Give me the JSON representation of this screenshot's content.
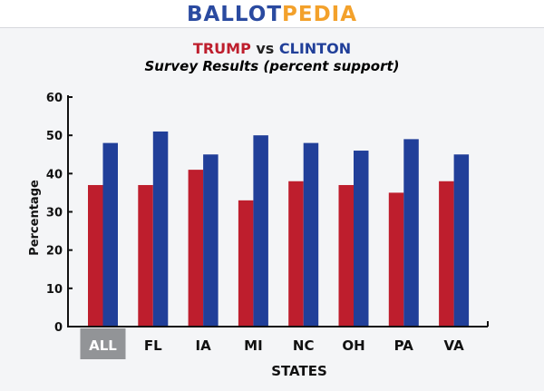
{
  "logo": {
    "part1": "BALLOT",
    "part2": "PEDIA",
    "color1": "#2a4aa0",
    "color2": "#f3a12b"
  },
  "title": {
    "trump": "TRUMP",
    "vs": " vs ",
    "clinton": "CLINTON"
  },
  "chart_data": {
    "type": "bar",
    "title": "TRUMP vs CLINTON",
    "subtitle": "Survey Results (percent support)",
    "xlabel": "STATES",
    "ylabel": "Percentage",
    "ylim": [
      0,
      60
    ],
    "yticks": [
      0,
      10,
      20,
      30,
      40,
      50,
      60
    ],
    "categories": [
      "ALL",
      "FL",
      "IA",
      "MI",
      "NC",
      "OH",
      "PA",
      "VA"
    ],
    "highlighted_category": "ALL",
    "series": [
      {
        "name": "TRUMP",
        "color": "#be1e2d",
        "values": [
          37,
          37,
          41,
          33,
          38,
          37,
          35,
          38
        ]
      },
      {
        "name": "CLINTON",
        "color": "#213f99",
        "values": [
          48,
          51,
          45,
          50,
          48,
          46,
          49,
          45
        ]
      }
    ]
  }
}
